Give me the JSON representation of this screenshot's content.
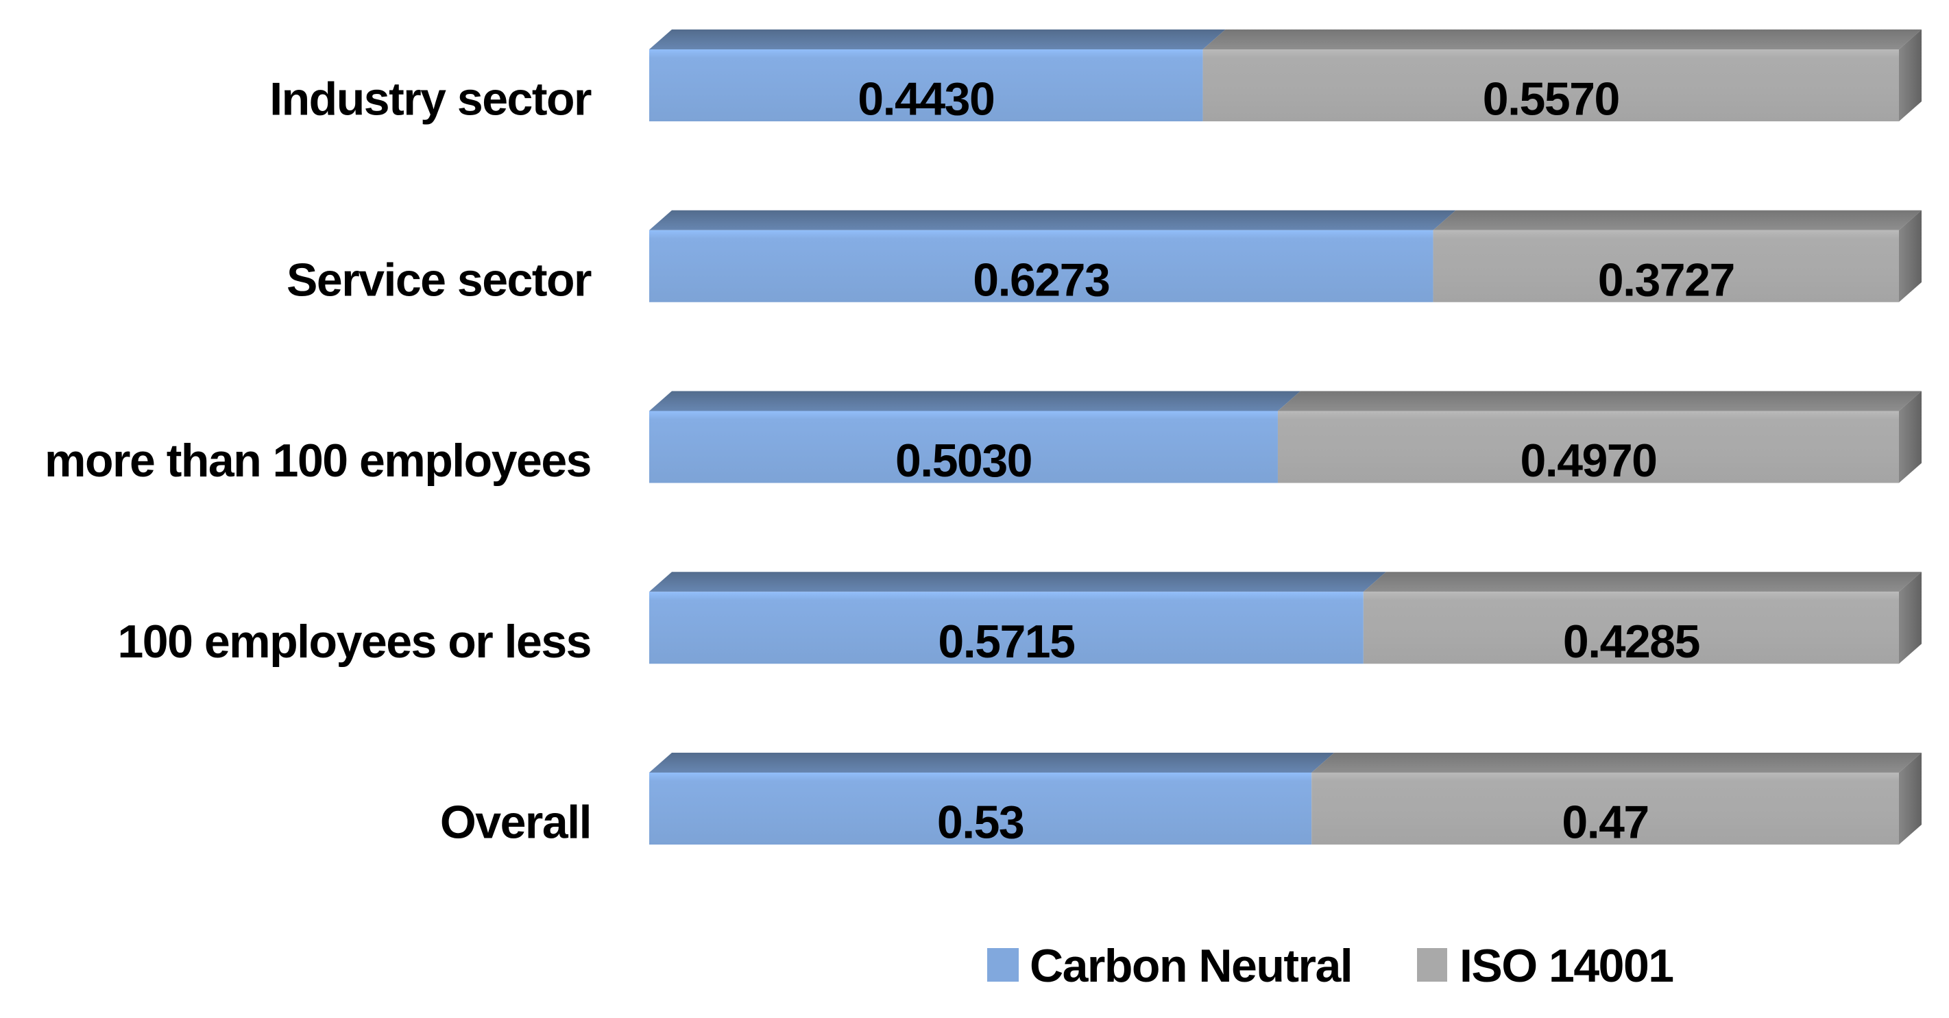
{
  "chart_data": {
    "type": "bar",
    "subtype": "horizontal-stacked-3d",
    "title": "",
    "xlabel": "",
    "ylabel": "",
    "xlim": [
      0,
      1
    ],
    "grid": false,
    "legend_position": "bottom",
    "categories": [
      "Industry sector",
      "Service sector",
      "more than 100 employees",
      "100 employees or less",
      "Overall"
    ],
    "series": [
      {
        "name": "Carbon Neutral",
        "color": "#81A8DD",
        "values": [
          0.443,
          0.6273,
          0.503,
          0.5715,
          0.53
        ],
        "data_labels": [
          "0.4430",
          "0.6273",
          "0.5030",
          "0.5715",
          "0.53"
        ]
      },
      {
        "name": "ISO 14001",
        "color": "#A9A9A9",
        "values": [
          0.557,
          0.3727,
          0.497,
          0.4285,
          0.47
        ],
        "data_labels": [
          "0.5570",
          "0.3727",
          "0.4970",
          "0.4285",
          "0.47"
        ]
      }
    ],
    "data_label_color": "#000000",
    "category_label_color": "#000000"
  },
  "legend": {
    "items": [
      {
        "label": "Carbon Neutral",
        "color": "#81A8DD"
      },
      {
        "label": "ISO 14001",
        "color": "#A9A9A9"
      }
    ]
  }
}
